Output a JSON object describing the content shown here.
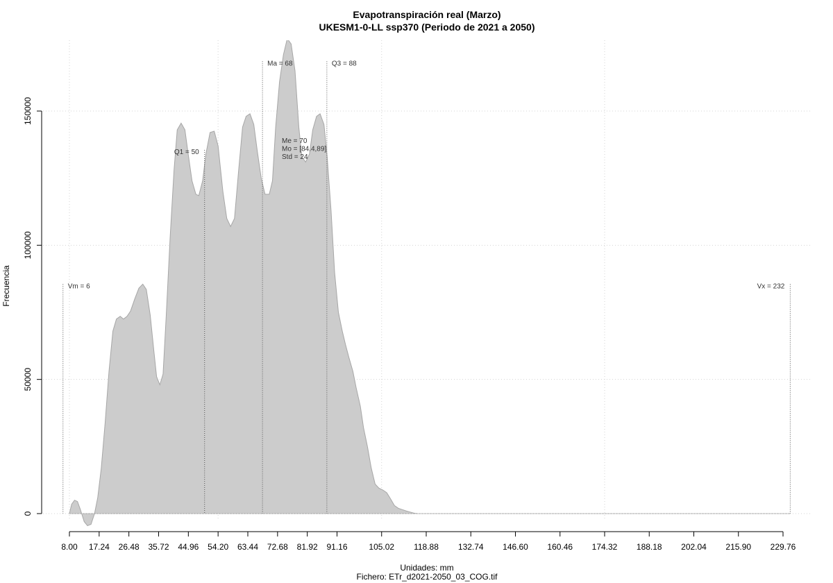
{
  "chart_data": {
    "type": "area",
    "title": "Evapotranspiración real (Marzo)",
    "subtitle": "UKESM1-0-LL ssp370 (Periodo de 2021 a 2050)",
    "xlabel": "Unidades: mm",
    "ylabel": "Frecuencia",
    "footer": "Fichero: ETr_d2021-2050_03_COG.tif",
    "grid": true,
    "xlim": [
      6,
      234
    ],
    "ylim": [
      0,
      150000
    ],
    "x_ticks": [
      "8.00",
      "17.24",
      "26.48",
      "35.72",
      "44.96",
      "54.20",
      "63.44",
      "72.68",
      "81.92",
      "91.16",
      "105.02",
      "118.88",
      "132.74",
      "146.60",
      "160.46",
      "174.32",
      "188.18",
      "202.04",
      "215.90",
      "229.76"
    ],
    "y_ticks": [
      0,
      50000,
      100000,
      150000
    ],
    "y_tick_labels": [
      "0",
      "50000",
      "100000",
      "150000"
    ],
    "colors": {
      "fill": "#cccccc",
      "stroke": "#a6a6a6",
      "grid": "#d3d3d3",
      "marker": "#555555"
    },
    "series": [
      {
        "x": [
          8.0,
          8.7,
          9.6,
          10.5,
          11.4,
          12.6,
          13.6,
          14.7,
          15.8,
          16.8,
          17.9,
          19.1,
          20.3,
          21.5,
          22.6,
          23.8,
          24.8,
          25.9,
          27.0,
          28.3,
          29.6,
          30.8,
          31.9,
          33.1,
          34.2,
          35.1,
          36.1,
          37.1,
          38.1,
          39.3,
          40.5,
          41.5,
          42.7,
          43.9,
          44.9,
          46.1,
          47.3,
          48.2,
          49.4,
          50.4,
          51.7,
          53.0,
          54.2,
          55.7,
          56.9,
          58.1,
          59.3,
          60.6,
          61.8,
          62.9,
          64.1,
          65.3,
          66.4,
          67.6,
          68.8,
          70.1,
          71.1,
          72.1,
          73.3,
          74.5,
          75.7,
          76.9,
          78.1,
          79.3,
          80.2,
          81.4,
          82.6,
          83.6,
          84.8,
          85.9,
          87.1,
          88.1,
          89.3,
          90.4,
          91.6,
          92.8,
          93.8,
          94.9,
          96.1,
          97.1,
          98.4,
          99.4,
          100.6,
          101.8,
          103.0,
          104.2,
          105.4,
          106.6,
          107.8,
          109.0,
          110.2,
          111.4,
          112.6,
          113.8,
          115.0,
          116.2,
          117.4,
          118.6,
          119.8,
          121.0,
          122.2,
          123.4,
          124.6,
          125.8,
          127.0,
          128.2,
          130.0,
          132.0,
          134.0,
          136.0,
          138.0,
          140.0,
          142.0,
          144.0,
          146.0,
          150.0,
          160.0,
          175.0,
          190.0,
          205.0,
          220.0,
          232.0
        ],
        "y": [
          0,
          3500,
          5000,
          4500,
          1500,
          -3000,
          -4500,
          -4000,
          0,
          6000,
          17000,
          34000,
          53000,
          68000,
          72500,
          73500,
          72500,
          73500,
          75500,
          80000,
          84000,
          85500,
          83500,
          74000,
          61000,
          51000,
          48000,
          52000,
          74000,
          103000,
          128000,
          143000,
          145500,
          143000,
          134000,
          124000,
          119000,
          118500,
          124000,
          134000,
          142000,
          142500,
          137000,
          120000,
          110000,
          107000,
          110000,
          128000,
          144000,
          148000,
          149000,
          145000,
          135000,
          125000,
          119000,
          119000,
          124000,
          144000,
          161000,
          171000,
          177000,
          175000,
          165000,
          144000,
          133000,
          131000,
          134000,
          143000,
          148000,
          149000,
          145000,
          133000,
          113000,
          90000,
          75000,
          68000,
          63000,
          58000,
          53000,
          47000,
          40000,
          32000,
          25000,
          17000,
          11000,
          9500,
          8800,
          7800,
          5500,
          3000,
          2000,
          1500,
          1000,
          600,
          200,
          0,
          0,
          0,
          0,
          0,
          0,
          0,
          0,
          0,
          0,
          0,
          0,
          0,
          0,
          0,
          0,
          0,
          0,
          0,
          0,
          0,
          0,
          0,
          0,
          0,
          0,
          0
        ]
      }
    ],
    "markers": [
      {
        "label": "Vm = 6",
        "x": 6,
        "label_y": 85000,
        "label_side": "right"
      },
      {
        "label": "Q1 = 50",
        "x": 50,
        "label_y": 135000,
        "label_side": "left"
      },
      {
        "label": "Ma = 68",
        "x": 68,
        "label_y": 168000,
        "label_side": "right"
      },
      {
        "label": "Q3 = 88",
        "x": 88,
        "label_y": 168000,
        "label_side": "right"
      },
      {
        "label": "Vx = 232",
        "x": 232,
        "label_y": 85000,
        "label_side": "left"
      }
    ],
    "stats": [
      "Me = 70",
      "Mo = [84.4,89]",
      "Std = 24"
    ]
  }
}
